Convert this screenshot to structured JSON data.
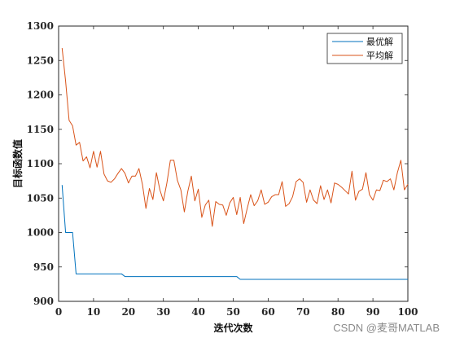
{
  "watermark": "CSDN @麦哥MATLAB",
  "chart_data": {
    "type": "line",
    "title": "",
    "xlabel": "迭代次数",
    "ylabel": "目标函数值",
    "xlim": [
      0,
      100
    ],
    "ylim": [
      900,
      1300
    ],
    "xticks": [
      0,
      10,
      20,
      30,
      40,
      50,
      60,
      70,
      80,
      90,
      100
    ],
    "yticks": [
      900,
      950,
      1000,
      1050,
      1100,
      1150,
      1200,
      1250,
      1300
    ],
    "grid": false,
    "box": true,
    "legend_position": "top-right",
    "series": [
      {
        "name": "最优解",
        "color": "#0072BD",
        "x": [
          1,
          2,
          3,
          4,
          5,
          6,
          7,
          8,
          9,
          10,
          11,
          12,
          13,
          14,
          15,
          16,
          17,
          18,
          19,
          20,
          21,
          22,
          23,
          24,
          25,
          26,
          27,
          28,
          29,
          30,
          31,
          32,
          33,
          34,
          35,
          36,
          37,
          38,
          39,
          40,
          41,
          42,
          43,
          44,
          45,
          46,
          47,
          48,
          49,
          50,
          51,
          52,
          53,
          54,
          55,
          56,
          57,
          58,
          59,
          60,
          61,
          62,
          63,
          64,
          65,
          66,
          67,
          68,
          69,
          70,
          71,
          72,
          73,
          74,
          75,
          76,
          77,
          78,
          79,
          80,
          81,
          82,
          83,
          84,
          85,
          86,
          87,
          88,
          89,
          90,
          91,
          92,
          93,
          94,
          95,
          96,
          97,
          98,
          99,
          100
        ],
        "values": [
          1069,
          1000,
          1000,
          1000,
          940,
          940,
          940,
          940,
          940,
          940,
          940,
          940,
          940,
          940,
          940,
          940,
          940,
          940,
          936,
          936,
          936,
          936,
          936,
          936,
          936,
          936,
          936,
          936,
          936,
          936,
          936,
          936,
          936,
          936,
          936,
          936,
          936,
          936,
          936,
          936,
          936,
          936,
          936,
          936,
          936,
          936,
          936,
          936,
          936,
          936,
          936,
          932,
          932,
          932,
          932,
          932,
          932,
          932,
          932,
          932,
          932,
          932,
          932,
          932,
          932,
          932,
          932,
          932,
          932,
          932,
          932,
          932,
          932,
          932,
          932,
          932,
          932,
          932,
          932,
          932,
          932,
          932,
          932,
          932,
          932,
          932,
          932,
          932,
          932,
          932,
          932,
          932,
          932,
          932,
          932,
          932,
          932,
          932,
          932,
          932
        ]
      },
      {
        "name": "平均解",
        "color": "#D95319",
        "x": [
          1,
          2,
          3,
          4,
          5,
          6,
          7,
          8,
          9,
          10,
          11,
          12,
          13,
          14,
          15,
          16,
          17,
          18,
          19,
          20,
          21,
          22,
          23,
          24,
          25,
          26,
          27,
          28,
          29,
          30,
          31,
          32,
          33,
          34,
          35,
          36,
          37,
          38,
          39,
          40,
          41,
          42,
          43,
          44,
          45,
          46,
          47,
          48,
          49,
          50,
          51,
          52,
          53,
          54,
          55,
          56,
          57,
          58,
          59,
          60,
          61,
          62,
          63,
          64,
          65,
          66,
          67,
          68,
          69,
          70,
          71,
          72,
          73,
          74,
          75,
          76,
          77,
          78,
          79,
          80,
          81,
          82,
          83,
          84,
          85,
          86,
          87,
          88,
          89,
          90,
          91,
          92,
          93,
          94,
          95,
          96,
          97,
          98,
          99,
          100
        ],
        "values": [
          1268,
          1220,
          1163,
          1155,
          1127,
          1131,
          1104,
          1110,
          1094,
          1118,
          1095,
          1118,
          1085,
          1075,
          1073,
          1078,
          1086,
          1093,
          1086,
          1072,
          1082,
          1082,
          1093,
          1070,
          1035,
          1064,
          1048,
          1087,
          1062,
          1046,
          1072,
          1105,
          1105,
          1076,
          1062,
          1030,
          1060,
          1082,
          1046,
          1063,
          1022,
          1040,
          1047,
          1009,
          1045,
          1041,
          1040,
          1025,
          1043,
          1051,
          1026,
          1051,
          1013,
          1035,
          1055,
          1039,
          1046,
          1062,
          1041,
          1044,
          1052,
          1055,
          1055,
          1074,
          1038,
          1042,
          1052,
          1074,
          1078,
          1073,
          1044,
          1062,
          1047,
          1042,
          1068,
          1048,
          1062,
          1043,
          1072,
          1070,
          1066,
          1061,
          1056,
          1089,
          1047,
          1060,
          1063,
          1087,
          1055,
          1047,
          1062,
          1061,
          1076,
          1074,
          1078,
          1062,
          1087,
          1105,
          1062,
          1070
        ]
      }
    ]
  }
}
